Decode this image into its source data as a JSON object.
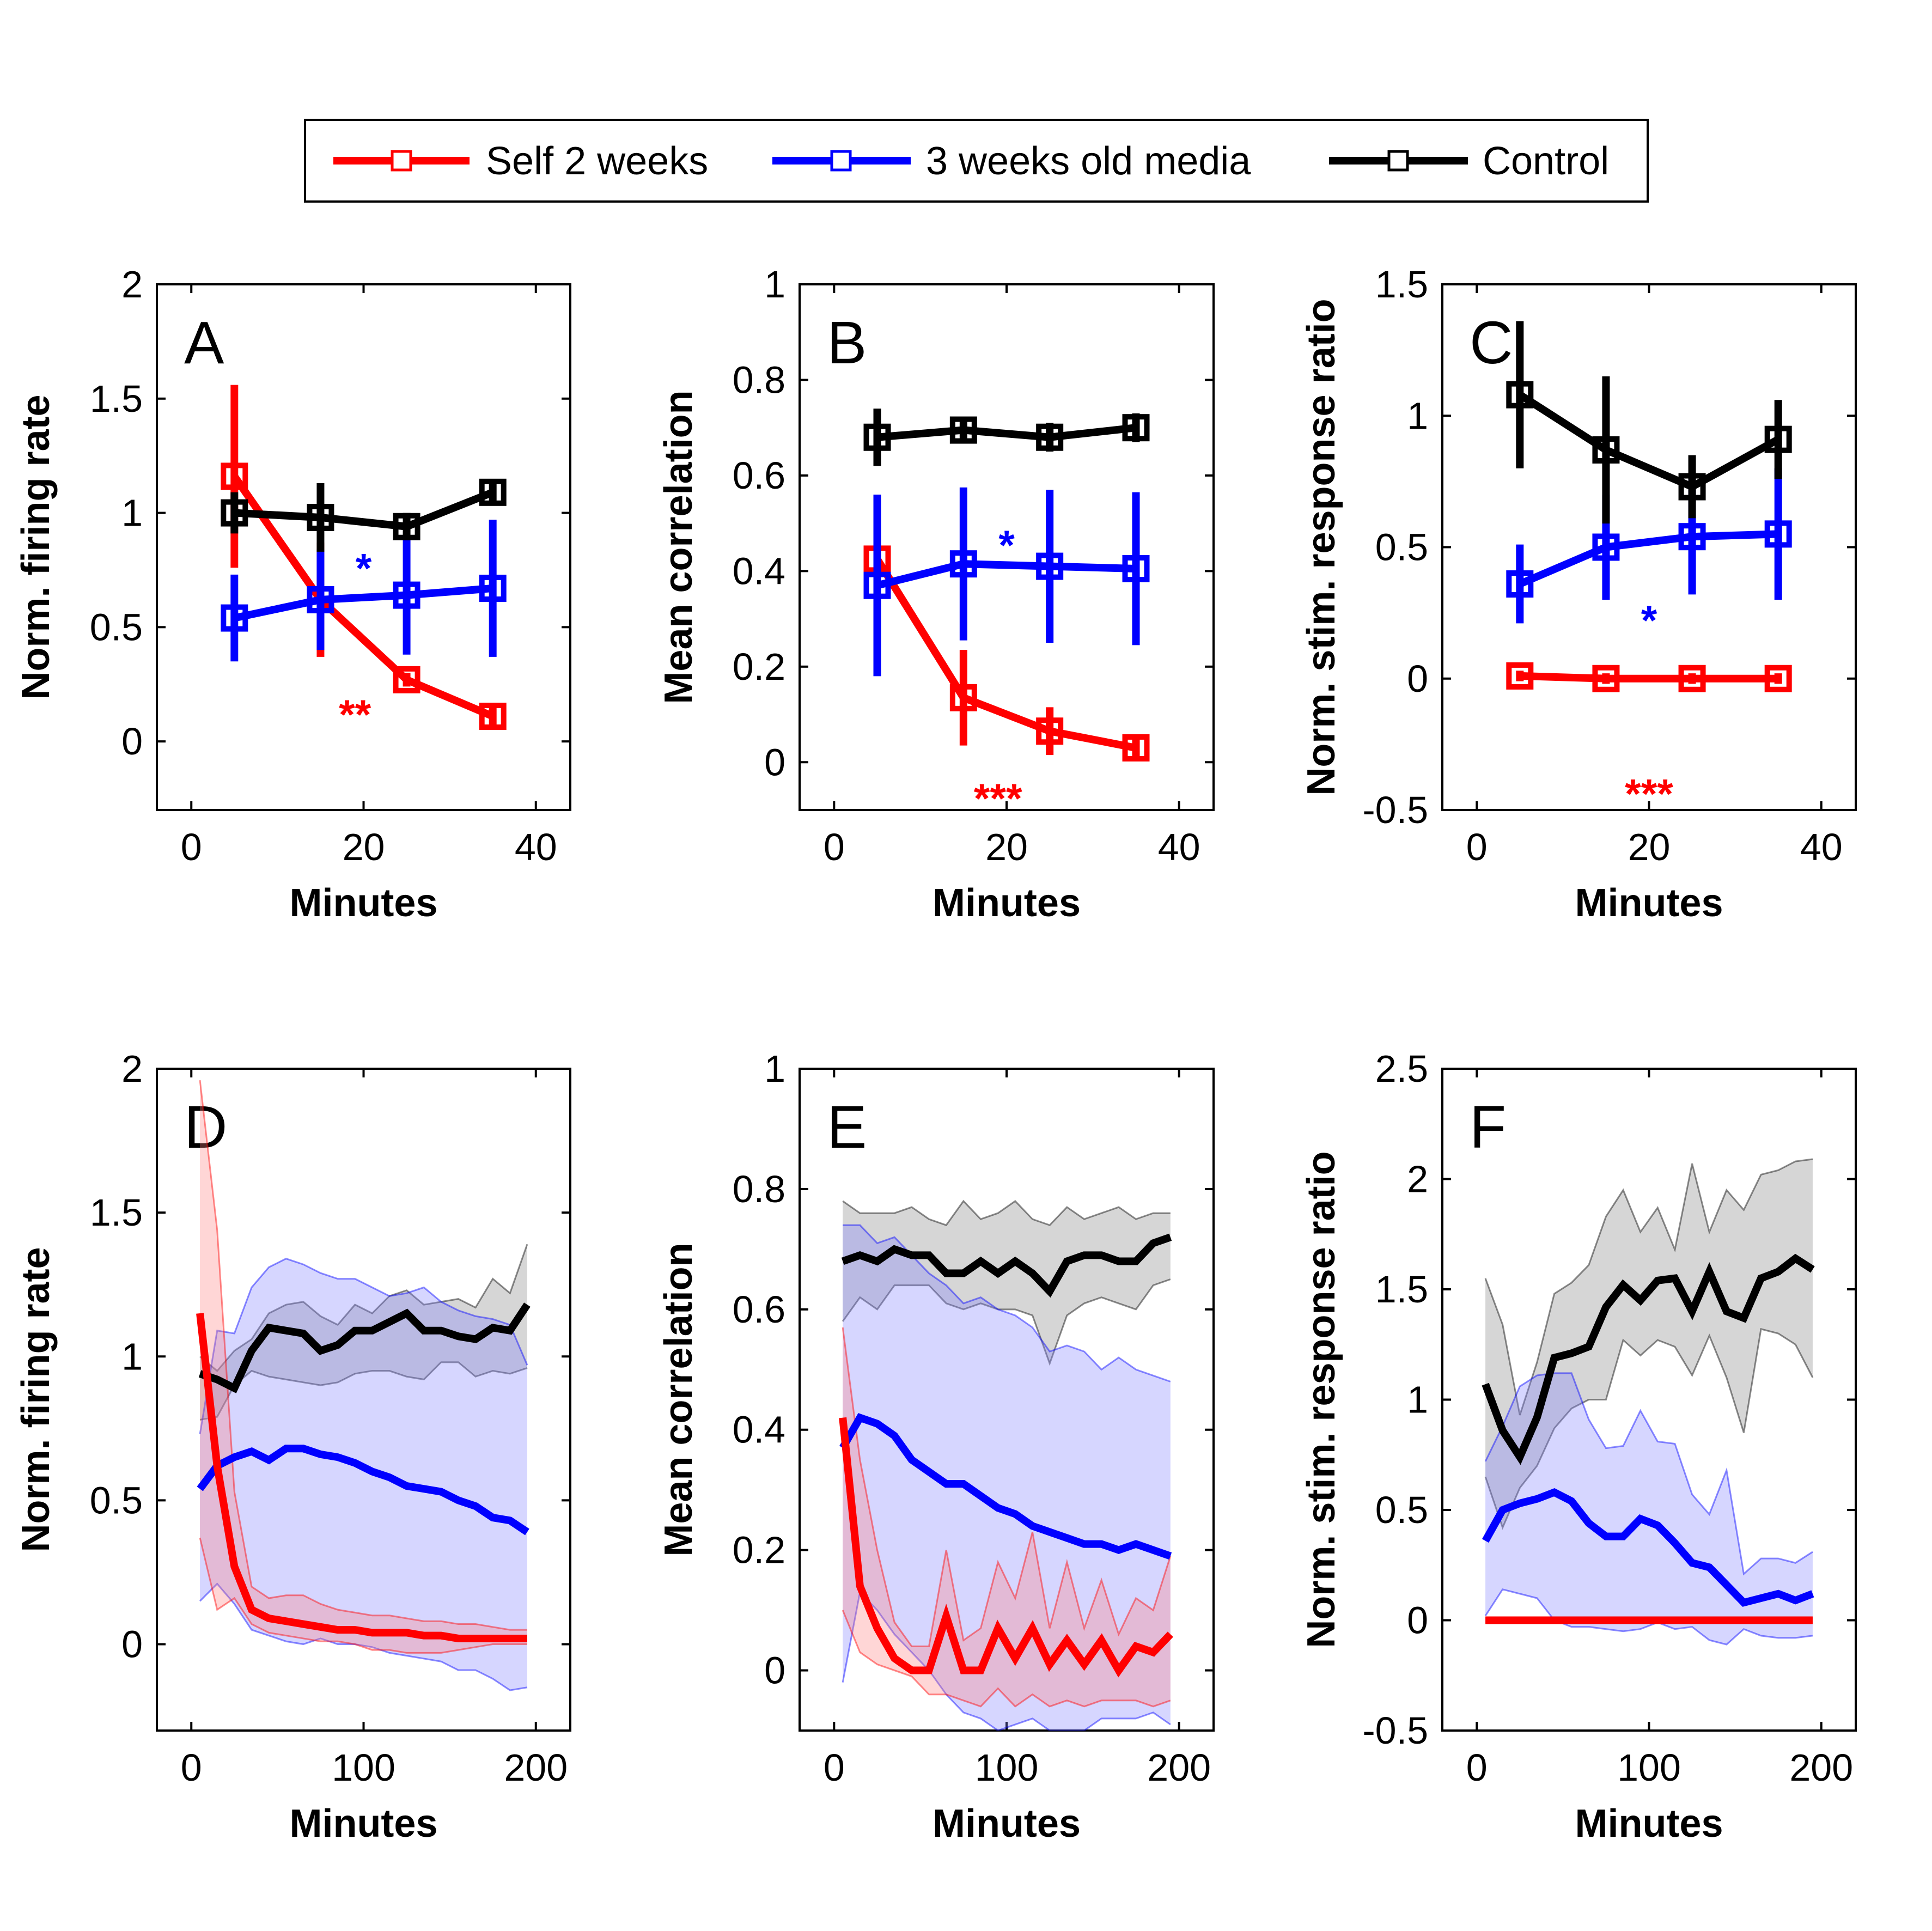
{
  "colors": {
    "red": "#ff0000",
    "blue": "#0000ff",
    "black": "#000000"
  },
  "legend": {
    "items": [
      {
        "label": "Self 2 weeks",
        "color": "#ff0000"
      },
      {
        "label": "3 weeks old media",
        "color": "#0000ff"
      },
      {
        "label": "Control",
        "color": "#000000"
      }
    ]
  },
  "chart_data": [
    {
      "panel": "A",
      "type": "line",
      "xlabel": "Minutes",
      "ylabel": "Norm. firing rate",
      "xlim": [
        -4,
        44
      ],
      "ylim": [
        -0.3,
        2
      ],
      "xticks": [
        0,
        20,
        40
      ],
      "yticks": [
        0,
        0.5,
        1,
        1.5,
        2
      ],
      "yticklabels": [
        "0",
        "0.5",
        "1",
        "1.5",
        "2"
      ],
      "x": [
        5,
        15,
        25,
        35
      ],
      "series": [
        {
          "name": "Self 2 weeks",
          "color": "#ff0000",
          "values": [
            1.16,
            0.62,
            0.27,
            0.11
          ],
          "err": [
            0.4,
            0.25,
            0.03,
            0.04
          ]
        },
        {
          "name": "3 weeks old media",
          "color": "#0000ff",
          "values": [
            0.54,
            0.62,
            0.64,
            0.67
          ],
          "err": [
            0.19,
            0.22,
            0.26,
            0.3
          ]
        },
        {
          "name": "Control",
          "color": "#000000",
          "values": [
            1.0,
            0.98,
            0.94,
            1.09
          ],
          "err": [
            0.09,
            0.15,
            0.06,
            0.05
          ]
        }
      ],
      "annotations": [
        {
          "text": "*",
          "x": 20,
          "y": 0.79,
          "color": "#0000ff"
        },
        {
          "text": "**",
          "x": 19,
          "y": 0.15,
          "color": "#ff0000"
        }
      ]
    },
    {
      "panel": "B",
      "type": "line",
      "xlabel": "Minutes",
      "ylabel": "Mean correlation",
      "xlim": [
        -4,
        44
      ],
      "ylim": [
        -0.1,
        1
      ],
      "xticks": [
        0,
        20,
        40
      ],
      "yticks": [
        0,
        0.2,
        0.4,
        0.6,
        0.8,
        1
      ],
      "yticklabels": [
        "0",
        "0.2",
        "0.4",
        "0.6",
        "0.8",
        "1"
      ],
      "x": [
        5,
        15,
        25,
        35
      ],
      "series": [
        {
          "name": "Self 2 weeks",
          "color": "#ff0000",
          "values": [
            0.425,
            0.135,
            0.065,
            0.03
          ],
          "err": [
            0.02,
            0.1,
            0.05,
            0.02
          ]
        },
        {
          "name": "3 weeks old media",
          "color": "#0000ff",
          "values": [
            0.37,
            0.415,
            0.41,
            0.405
          ],
          "err": [
            0.19,
            0.16,
            0.16,
            0.16
          ]
        },
        {
          "name": "Control",
          "color": "#000000",
          "values": [
            0.68,
            0.695,
            0.68,
            0.7
          ],
          "err": [
            0.06,
            0.02,
            0.03,
            0.03
          ]
        }
      ],
      "annotations": [
        {
          "text": "*",
          "x": 20,
          "y": 0.47,
          "color": "#0000ff"
        },
        {
          "text": "***",
          "x": 19,
          "y": -0.06,
          "color": "#ff0000"
        }
      ]
    },
    {
      "panel": "C",
      "type": "line",
      "xlabel": "Minutes",
      "ylabel": "Norm. stim. response ratio",
      "xlim": [
        -4,
        44
      ],
      "ylim": [
        -0.5,
        1.5
      ],
      "xticks": [
        0,
        20,
        40
      ],
      "yticks": [
        -0.5,
        0,
        0.5,
        1,
        1.5
      ],
      "yticklabels": [
        "-0.5",
        "0",
        "0.5",
        "1",
        "1.5"
      ],
      "x": [
        5,
        15,
        25,
        35
      ],
      "series": [
        {
          "name": "Self 2 weeks",
          "color": "#ff0000",
          "values": [
            0.01,
            0.0,
            0.0,
            0.0
          ],
          "err": [
            0.02,
            0.02,
            0.02,
            0.02
          ]
        },
        {
          "name": "3 weeks old media",
          "color": "#0000ff",
          "values": [
            0.36,
            0.5,
            0.54,
            0.55
          ],
          "err": [
            0.15,
            0.2,
            0.22,
            0.25
          ]
        },
        {
          "name": "Control",
          "color": "#000000",
          "values": [
            1.08,
            0.87,
            0.73,
            0.91
          ],
          "err": [
            0.28,
            0.28,
            0.12,
            0.15
          ]
        }
      ],
      "annotations": [
        {
          "text": "*",
          "x": 20,
          "y": 0.25,
          "color": "#0000ff"
        },
        {
          "text": "***",
          "x": 20,
          "y": -0.41,
          "color": "#ff0000"
        }
      ]
    },
    {
      "panel": "D",
      "type": "area",
      "xlabel": "Minutes",
      "ylabel": "Norm. firing rate",
      "xlim": [
        -20,
        220
      ],
      "ylim": [
        -0.3,
        2
      ],
      "xticks": [
        0,
        100,
        200
      ],
      "yticks": [
        0,
        0.5,
        1,
        1.5,
        2
      ],
      "yticklabels": [
        "0",
        "0.5",
        "1",
        "1.5",
        "2"
      ],
      "x": [
        5,
        15,
        25,
        35,
        45,
        55,
        65,
        75,
        85,
        95,
        105,
        115,
        125,
        135,
        145,
        155,
        165,
        175,
        185,
        195
      ],
      "series": [
        {
          "name": "Control",
          "color": "#000000",
          "values": [
            0.94,
            0.92,
            0.89,
            1.02,
            1.1,
            1.09,
            1.08,
            1.02,
            1.04,
            1.09,
            1.09,
            1.12,
            1.15,
            1.09,
            1.09,
            1.07,
            1.06,
            1.1,
            1.09,
            1.18
          ],
          "lower": [
            0.78,
            0.79,
            0.9,
            0.95,
            0.93,
            0.92,
            0.91,
            0.9,
            0.91,
            0.94,
            0.95,
            0.95,
            0.93,
            0.92,
            0.98,
            0.98,
            0.93,
            0.95,
            0.94,
            0.96
          ],
          "upper": [
            1.0,
            0.95,
            1.02,
            1.06,
            1.15,
            1.18,
            1.19,
            1.14,
            1.11,
            1.18,
            1.15,
            1.21,
            1.23,
            1.18,
            1.19,
            1.2,
            1.17,
            1.27,
            1.22,
            1.39
          ]
        },
        {
          "name": "3 weeks old media",
          "color": "#0000ff",
          "values": [
            0.54,
            0.62,
            0.65,
            0.67,
            0.64,
            0.68,
            0.68,
            0.66,
            0.65,
            0.63,
            0.6,
            0.58,
            0.55,
            0.54,
            0.53,
            0.5,
            0.48,
            0.44,
            0.43,
            0.39
          ],
          "lower": [
            0.15,
            0.21,
            0.14,
            0.05,
            0.03,
            0.01,
            0.0,
            0.02,
            0.0,
            0.0,
            -0.01,
            -0.03,
            -0.04,
            -0.05,
            -0.06,
            -0.09,
            -0.09,
            -0.12,
            -0.16,
            -0.15
          ],
          "upper": [
            0.73,
            1.09,
            1.08,
            1.24,
            1.31,
            1.34,
            1.32,
            1.29,
            1.27,
            1.27,
            1.24,
            1.21,
            1.22,
            1.24,
            1.19,
            1.16,
            1.14,
            1.13,
            1.11,
            0.97
          ]
        },
        {
          "name": "Self 2 weeks",
          "color": "#ff0000",
          "values": [
            1.15,
            0.62,
            0.27,
            0.12,
            0.09,
            0.08,
            0.07,
            0.06,
            0.05,
            0.05,
            0.04,
            0.04,
            0.04,
            0.03,
            0.03,
            0.02,
            0.02,
            0.02,
            0.02,
            0.02
          ],
          "lower": [
            0.37,
            0.12,
            0.16,
            0.07,
            0.04,
            0.03,
            0.02,
            0.01,
            0.01,
            0.0,
            -0.02,
            -0.02,
            -0.03,
            -0.03,
            -0.03,
            -0.02,
            -0.01,
            0.0,
            0.0,
            0.0
          ],
          "upper": [
            1.96,
            1.44,
            0.53,
            0.2,
            0.16,
            0.17,
            0.17,
            0.14,
            0.12,
            0.11,
            0.1,
            0.1,
            0.09,
            0.08,
            0.08,
            0.07,
            0.07,
            0.06,
            0.05,
            0.05
          ]
        }
      ]
    },
    {
      "panel": "E",
      "type": "area",
      "xlabel": "Minutes",
      "ylabel": "Mean correlation",
      "xlim": [
        -20,
        220
      ],
      "ylim": [
        -0.1,
        1
      ],
      "xticks": [
        0,
        100,
        200
      ],
      "yticks": [
        0,
        0.2,
        0.4,
        0.6,
        0.8,
        1
      ],
      "yticklabels": [
        "0",
        "0.2",
        "0.4",
        "0.6",
        "0.8",
        "1"
      ],
      "x": [
        5,
        15,
        25,
        35,
        45,
        55,
        65,
        75,
        85,
        95,
        105,
        115,
        125,
        135,
        145,
        155,
        165,
        175,
        185,
        195
      ],
      "series": [
        {
          "name": "Control",
          "color": "#000000",
          "values": [
            0.68,
            0.69,
            0.68,
            0.7,
            0.69,
            0.69,
            0.66,
            0.66,
            0.68,
            0.66,
            0.68,
            0.66,
            0.63,
            0.68,
            0.69,
            0.69,
            0.68,
            0.68,
            0.71,
            0.72
          ],
          "lower": [
            0.58,
            0.62,
            0.6,
            0.64,
            0.64,
            0.64,
            0.61,
            0.6,
            0.61,
            0.6,
            0.6,
            0.59,
            0.51,
            0.59,
            0.61,
            0.62,
            0.61,
            0.6,
            0.64,
            0.65
          ],
          "upper": [
            0.78,
            0.76,
            0.76,
            0.76,
            0.77,
            0.75,
            0.74,
            0.78,
            0.75,
            0.76,
            0.78,
            0.75,
            0.74,
            0.77,
            0.75,
            0.76,
            0.77,
            0.75,
            0.76,
            0.76
          ]
        },
        {
          "name": "3 weeks old media",
          "color": "#0000ff",
          "values": [
            0.37,
            0.42,
            0.41,
            0.39,
            0.35,
            0.33,
            0.31,
            0.31,
            0.29,
            0.27,
            0.26,
            0.24,
            0.23,
            0.22,
            0.21,
            0.21,
            0.2,
            0.21,
            0.2,
            0.19
          ],
          "lower": [
            -0.02,
            0.13,
            0.1,
            0.06,
            0.03,
            0.0,
            -0.04,
            -0.07,
            -0.08,
            -0.1,
            -0.09,
            -0.08,
            -0.1,
            -0.1,
            -0.1,
            -0.08,
            -0.08,
            -0.08,
            -0.07,
            -0.09
          ],
          "upper": [
            0.74,
            0.74,
            0.71,
            0.72,
            0.69,
            0.66,
            0.64,
            0.61,
            0.62,
            0.6,
            0.59,
            0.57,
            0.53,
            0.54,
            0.53,
            0.5,
            0.52,
            0.5,
            0.49,
            0.48
          ]
        },
        {
          "name": "Self 2 weeks",
          "color": "#ff0000",
          "values": [
            0.42,
            0.14,
            0.07,
            0.02,
            0.0,
            0.0,
            0.09,
            0.0,
            0.0,
            0.07,
            0.02,
            0.07,
            0.01,
            0.05,
            0.01,
            0.05,
            0.0,
            0.04,
            0.03,
            0.06
          ],
          "lower": [
            0.1,
            0.03,
            0.01,
            0.0,
            -0.01,
            -0.04,
            -0.04,
            -0.05,
            -0.06,
            -0.03,
            -0.06,
            -0.04,
            -0.06,
            -0.05,
            -0.06,
            -0.05,
            -0.05,
            -0.05,
            -0.06,
            -0.05
          ],
          "upper": [
            0.57,
            0.35,
            0.2,
            0.08,
            0.04,
            0.04,
            0.2,
            0.05,
            0.07,
            0.18,
            0.12,
            0.23,
            0.07,
            0.18,
            0.07,
            0.15,
            0.06,
            0.12,
            0.1,
            0.19
          ]
        }
      ]
    },
    {
      "panel": "F",
      "type": "area",
      "xlabel": "Minutes",
      "ylabel": "Norm. stim. response ratio",
      "xlim": [
        -20,
        220
      ],
      "ylim": [
        -0.5,
        2.5
      ],
      "xticks": [
        0,
        100,
        200
      ],
      "yticks": [
        -0.5,
        0,
        0.5,
        1,
        1.5,
        2,
        2.5
      ],
      "yticklabels": [
        "-0.5",
        "0",
        "0.5",
        "1",
        "1.5",
        "2",
        "2.5"
      ],
      "x": [
        5,
        15,
        25,
        35,
        45,
        55,
        65,
        75,
        85,
        95,
        105,
        115,
        125,
        135,
        145,
        155,
        165,
        175,
        185,
        195
      ],
      "series": [
        {
          "name": "Control",
          "color": "#000000",
          "values": [
            1.07,
            0.86,
            0.74,
            0.92,
            1.19,
            1.21,
            1.24,
            1.42,
            1.52,
            1.45,
            1.54,
            1.55,
            1.4,
            1.58,
            1.4,
            1.37,
            1.55,
            1.58,
            1.64,
            1.59
          ],
          "lower": [
            0.65,
            0.42,
            0.6,
            0.7,
            0.87,
            0.96,
            1.0,
            1.0,
            1.27,
            1.2,
            1.27,
            1.24,
            1.11,
            1.29,
            1.1,
            0.85,
            1.32,
            1.3,
            1.25,
            1.1
          ],
          "upper": [
            1.55,
            1.34,
            0.93,
            1.17,
            1.48,
            1.53,
            1.61,
            1.83,
            1.95,
            1.76,
            1.87,
            1.68,
            2.07,
            1.76,
            1.95,
            1.86,
            2.02,
            2.04,
            2.08,
            2.09
          ]
        },
        {
          "name": "3 weeks old media",
          "color": "#0000ff",
          "values": [
            0.36,
            0.5,
            0.53,
            0.55,
            0.58,
            0.54,
            0.44,
            0.38,
            0.38,
            0.46,
            0.43,
            0.35,
            0.26,
            0.24,
            0.16,
            0.08,
            0.1,
            0.12,
            0.09,
            0.12
          ],
          "lower": [
            0.02,
            0.14,
            0.12,
            0.1,
            0.0,
            -0.03,
            -0.03,
            -0.04,
            -0.05,
            -0.04,
            -0.01,
            -0.04,
            -0.03,
            -0.09,
            -0.11,
            -0.04,
            -0.07,
            -0.08,
            -0.08,
            -0.07
          ],
          "upper": [
            0.72,
            0.88,
            1.06,
            1.11,
            1.12,
            1.12,
            0.91,
            0.78,
            0.79,
            0.95,
            0.81,
            0.8,
            0.57,
            0.48,
            0.68,
            0.21,
            0.28,
            0.28,
            0.26,
            0.31
          ]
        },
        {
          "name": "Self 2 weeks",
          "color": "#ff0000",
          "values": [
            0.0,
            0.0,
            0.0,
            0.0,
            0.0,
            0.0,
            0.0,
            0.0,
            0.0,
            0.0,
            0.0,
            0.0,
            0.0,
            0.0,
            0.0,
            0.0,
            0.0,
            0.0,
            0.0,
            0.0
          ],
          "lower": [
            -0.01,
            -0.01,
            -0.01,
            -0.01,
            -0.01,
            -0.01,
            -0.01,
            -0.01,
            -0.01,
            -0.01,
            -0.01,
            -0.01,
            -0.01,
            -0.01,
            -0.01,
            -0.01,
            -0.01,
            -0.01,
            -0.01,
            -0.01
          ],
          "upper": [
            0.01,
            0.01,
            0.01,
            0.01,
            0.01,
            0.01,
            0.01,
            0.01,
            0.01,
            0.01,
            0.01,
            0.01,
            0.01,
            0.01,
            0.01,
            0.01,
            0.01,
            0.01,
            0.01,
            0.01
          ]
        }
      ]
    }
  ]
}
